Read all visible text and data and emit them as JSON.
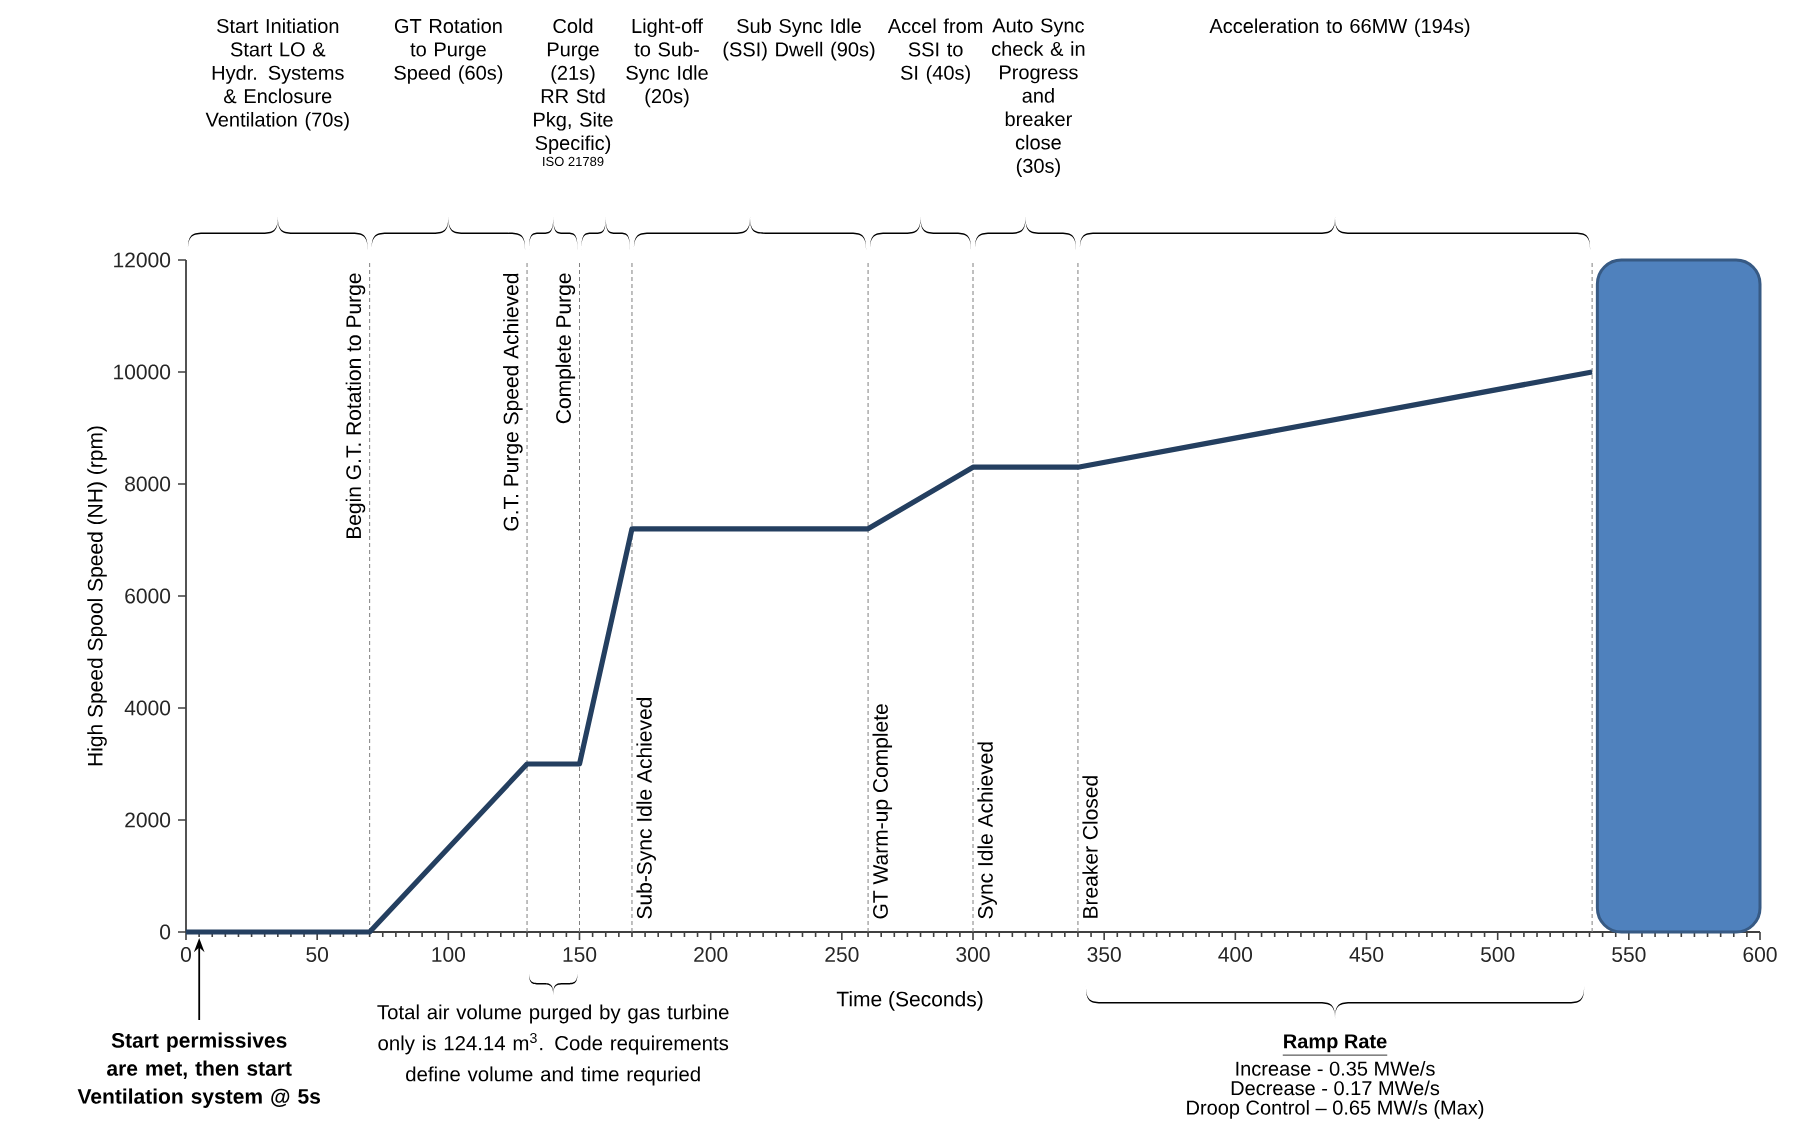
{
  "chart_data": {
    "type": "line",
    "xlabel": "Time (Seconds)",
    "ylabel": "High Speed Spool Speed (NH) (rpm)",
    "x": [
      0,
      70,
      130,
      150,
      170,
      260,
      300,
      340,
      536
    ],
    "series": [
      {
        "color": "#243f60",
        "values": [
          0,
          0,
          3000,
          3000,
          7200,
          7200,
          8300,
          8300,
          10000
        ]
      }
    ],
    "xlim": [
      0,
      600
    ],
    "ylim": [
      0,
      12000
    ],
    "xticks": [
      0,
      50,
      100,
      150,
      200,
      250,
      300,
      350,
      400,
      450,
      500,
      550,
      600
    ],
    "yticks": [
      0,
      2000,
      4000,
      6000,
      8000,
      10000,
      12000
    ],
    "grid": false,
    "ref_lines": [
      {
        "axis": "x",
        "value": 70,
        "label": "Begin G.T. Rotation to Purge",
        "line_style": "dashed"
      },
      {
        "axis": "x",
        "value": 130,
        "label": "G.T. Purge Speed Achieved",
        "line_style": "dashed"
      },
      {
        "axis": "x",
        "value": 150,
        "label": "Complete Purge",
        "line_style": "dashed"
      },
      {
        "axis": "x",
        "value": 170,
        "label": "Sub-Sync Idle Achieved",
        "line_style": "dashed"
      },
      {
        "axis": "x",
        "value": 260,
        "label": "GT Warm-up Complete",
        "line_style": "dashed"
      },
      {
        "axis": "x",
        "value": 300,
        "label": "Sync Idle Achieved",
        "line_style": "dashed"
      },
      {
        "axis": "x",
        "value": 340,
        "label": "Breaker Closed",
        "line_style": "dashed"
      },
      {
        "axis": "x",
        "value": 536,
        "line_style": "dashed"
      }
    ],
    "bands": [
      {
        "axis": "x",
        "from": 538,
        "to": 600,
        "color": "#4f81bd"
      }
    ],
    "annotations": [
      "Start Initiation Start LO & Hydr. Systems & Enclosure Ventilation (70s)",
      "GT Rotation to Purge Speed (60s)",
      "Cold Purge (21s) RR Std Pkg, Site Specific)",
      "Light-off to Sub-Sync Idle (20s)",
      "Sub Sync Idle (SSI) Dwell (90s)",
      "Accel from SSI to SI (40s)",
      "Auto Sync check & in Progress and breaker close (30s)",
      "Acceleration to 66MW (194s)",
      "ISO 21789",
      {
        "text": "Start permissives are met, then start Ventilation system  @ 5s",
        "x": 5,
        "y": 0
      },
      "Total air volume purged by gas turbine only is 124.14 m$^{3}$. Code requirements define volume and time requried",
      "Ramp Rate",
      "Increase - 0.35 MWe/s",
      "Decrease - 0.17 MWe/s",
      "Droop Control – 0.65 MW/s  (Max)"
    ]
  }
}
